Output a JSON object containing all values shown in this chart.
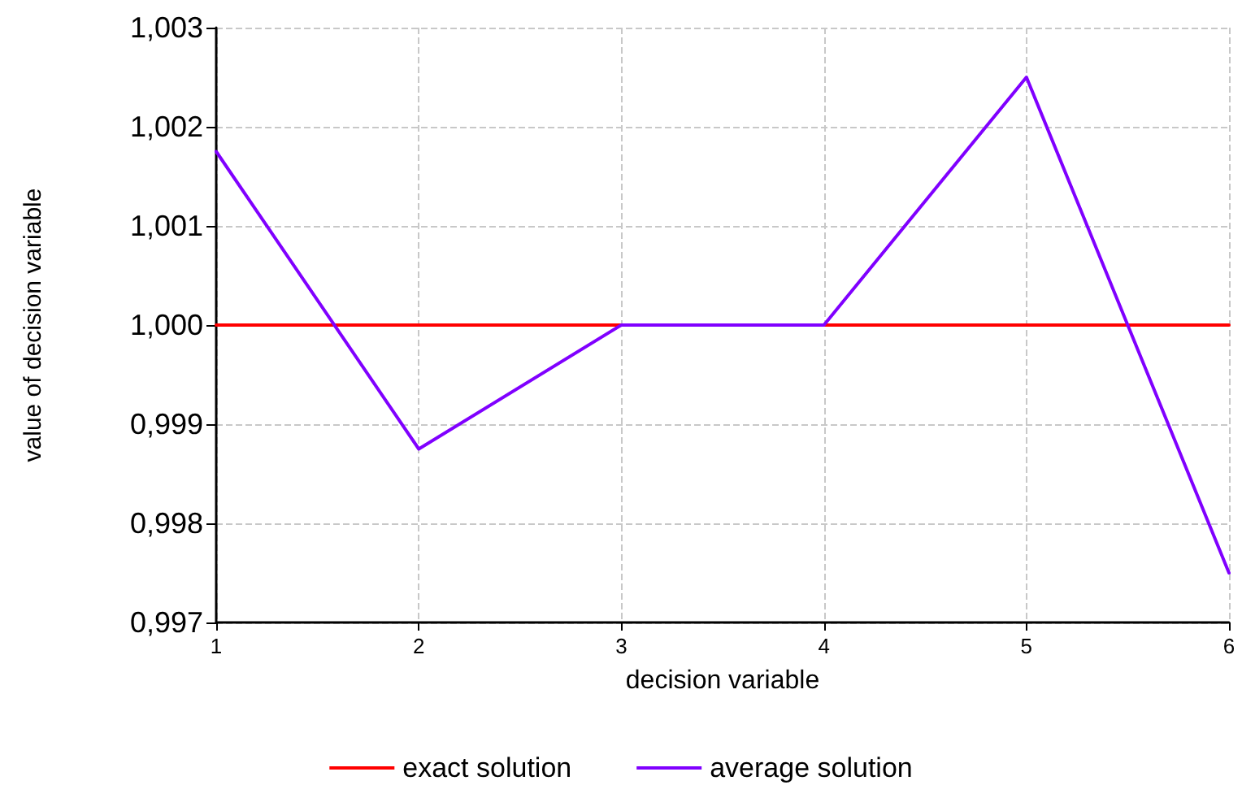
{
  "chart_data": {
    "type": "line",
    "xlabel": "decision variable",
    "ylabel": "value of decision variable",
    "x": [
      1,
      2,
      3,
      4,
      5,
      6
    ],
    "series": [
      {
        "name": "exact solution",
        "color": "#ff0000",
        "values": [
          1.0,
          1.0,
          1.0,
          1.0,
          1.0,
          1.0
        ]
      },
      {
        "name": "average solution",
        "color": "#8000ff",
        "values": [
          1.00175,
          0.99875,
          1.0,
          1.0,
          1.0025,
          0.9975
        ]
      }
    ],
    "xlim": [
      1,
      6
    ],
    "xticks": [
      1,
      2,
      3,
      4,
      5,
      6
    ],
    "ylim": [
      0.997,
      1.003
    ],
    "yticks": [
      {
        "value": 0.997,
        "label": "0,997"
      },
      {
        "value": 0.998,
        "label": "0,998"
      },
      {
        "value": 0.999,
        "label": "0,999"
      },
      {
        "value": 1.0,
        "label": "1,000"
      },
      {
        "value": 1.001,
        "label": "1,001"
      },
      {
        "value": 1.002,
        "label": "1,002"
      },
      {
        "value": 1.003,
        "label": "1,003"
      }
    ],
    "grid": true,
    "legend": "bottom",
    "marker": "none",
    "line_style": "solid"
  }
}
